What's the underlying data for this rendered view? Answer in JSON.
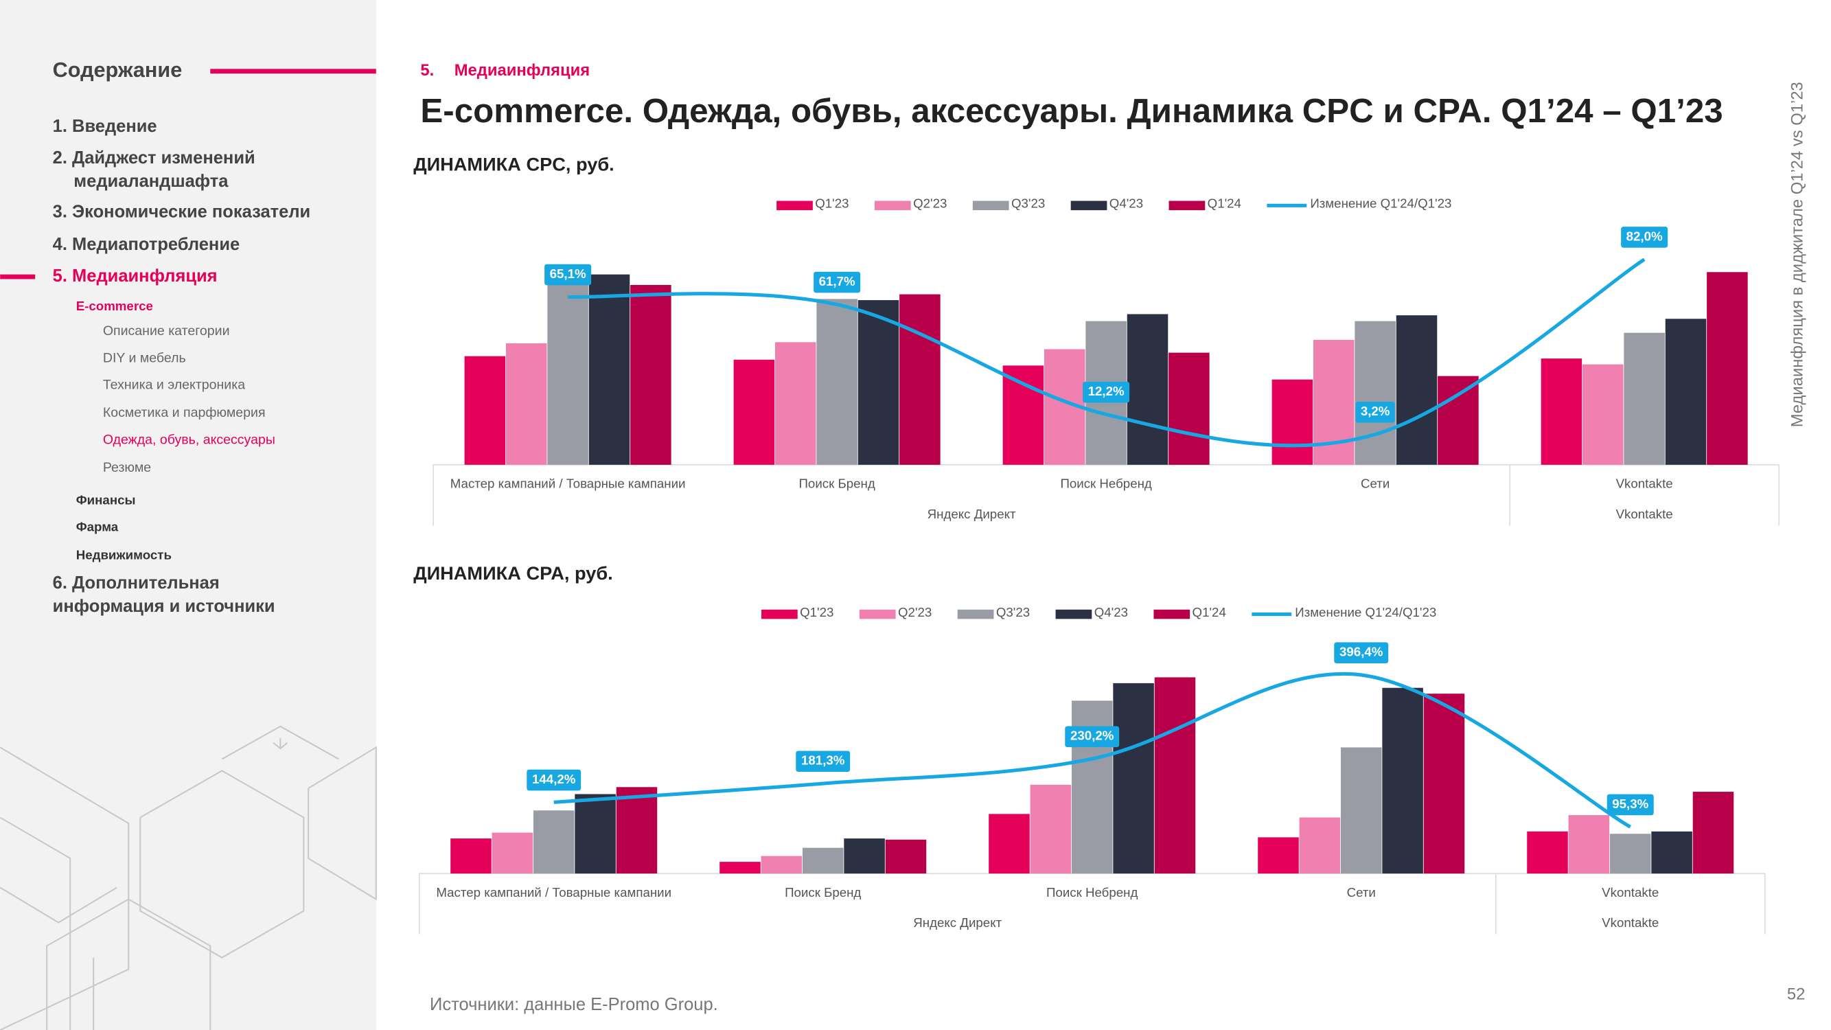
{
  "sidebar": {
    "title": "Содержание",
    "toc": [
      "1. Введение",
      "2. Дайджест изменений",
      "медиаландшафта",
      "3. Экономические показатели",
      "4. Медиапотребление",
      "5. Медиаинфляция",
      "E-commerce",
      "Описание категории",
      "DIY и мебель",
      "Техника и электроника",
      "Косметика и парфюмерия",
      "Одежда, обувь, аксессуары",
      "Резюме",
      "Финансы",
      "Фарма",
      "Недвижимость",
      "6. Дополнительная",
      "информация и источники"
    ]
  },
  "header": {
    "section_number": "5.",
    "section": "Медиаинфляция",
    "title": "E-commerce. Одежда, обувь, аксессуары. Динамика CPC и CPA. Q1’24 – Q1’23"
  },
  "side_note": "Медиаинфляция в диджитале Q1’24 vs Q1’23",
  "source": "Источники: данные E-Promo Group.",
  "page_number": "52",
  "chart_data": [
    {
      "type": "bar",
      "title": "ДИНАМИКА CPC, руб.",
      "categories": [
        "Мастер кампаний / Товарные кампании",
        "Поиск Бренд",
        "Поиск Небренд",
        "Сети",
        "Vkontakte"
      ],
      "groups": [
        "Яндекс Директ",
        "Vkontakte"
      ],
      "ylim": [
        0,
        208
      ],
      "y2lim": [
        -10.5,
        98.9
      ],
      "series": [
        {
          "name": "Q1'23",
          "color": "#e5005a",
          "values": [
            93,
            90,
            85,
            73,
            91
          ]
        },
        {
          "name": "Q2'23",
          "color": "#f080b0",
          "values": [
            104,
            105,
            99,
            107,
            86
          ]
        },
        {
          "name": "Q3'23",
          "color": "#9a9ca5",
          "values": [
            154,
            142,
            123,
            123,
            113
          ]
        },
        {
          "name": "Q4'23",
          "color": "#2b3142",
          "values": [
            163,
            141,
            129,
            128,
            125
          ]
        },
        {
          "name": "Q1'24",
          "color": "#b8004a",
          "values": [
            154,
            146,
            96,
            76,
            165
          ]
        },
        {
          "name": "Изменение Q1'24/Q1'23",
          "type": "line",
          "axis": "y2",
          "color": "#17a8e3",
          "values": [
            65.1,
            61.7,
            12.2,
            3.2,
            82.0
          ],
          "value_labels": [
            "65,1%",
            "61,7%",
            "12,2%",
            "3,2%",
            "82,0%"
          ]
        }
      ]
    },
    {
      "type": "bar",
      "title": "ДИНАМИКА CPA, руб.",
      "categories": [
        "Мастер кампаний / Товарные кампании",
        "Поиск Бренд",
        "Поиск Небренд",
        "Сети",
        "Vkontakte"
      ],
      "groups": [
        "Яндекс Директ",
        "Vkontakte"
      ],
      "ylim": [
        0,
        188
      ],
      "y2lim": [
        3,
        438
      ],
      "series": [
        {
          "name": "Q1'23",
          "color": "#e5005a",
          "values": [
            30,
            10,
            51,
            31,
            36
          ]
        },
        {
          "name": "Q2'23",
          "color": "#f080b0",
          "values": [
            35,
            15,
            76,
            48,
            50
          ]
        },
        {
          "name": "Q3'23",
          "color": "#9a9ca5",
          "values": [
            54,
            22,
            148,
            108,
            34
          ]
        },
        {
          "name": "Q4'23",
          "color": "#2b3142",
          "values": [
            68,
            30,
            163,
            159,
            36
          ]
        },
        {
          "name": "Q1'24",
          "color": "#b8004a",
          "values": [
            74,
            29,
            168,
            154,
            70
          ]
        },
        {
          "name": "Изменение Q1'24/Q1'23",
          "type": "line",
          "axis": "y2",
          "color": "#17a8e3",
          "values": [
            144.2,
            181.3,
            230.2,
            396.4,
            95.3
          ],
          "value_labels": [
            "144,2%",
            "181,3%",
            "230,2%",
            "396,4%",
            "95,3%"
          ]
        }
      ]
    }
  ]
}
